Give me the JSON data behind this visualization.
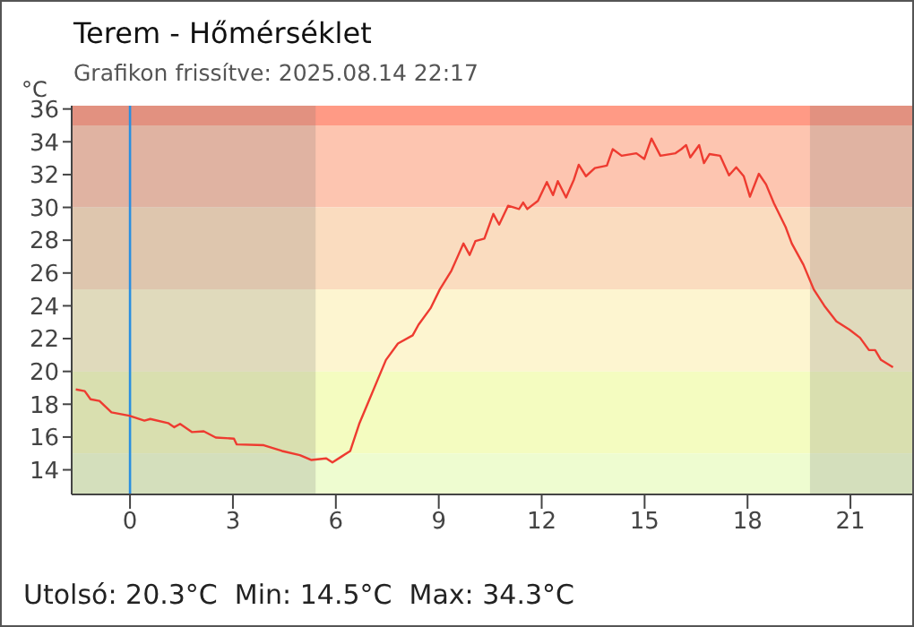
{
  "chart_data": {
    "type": "line",
    "title": "Terem - Hőmérséklet",
    "subtitle": "Grafikon frissítve: 2025.08.14 22:17",
    "ylabel": "°C",
    "annotations": [
      "Utolsó: 20.3°C  Min: 14.5°C  Max: 34.3°C"
    ],
    "xlim": [
      -1.7,
      22.8
    ],
    "xticks": [
      0,
      3,
      6,
      9,
      12,
      15,
      18,
      21
    ],
    "ylim": [
      12.5,
      36.2
    ],
    "yticks": [
      14,
      16,
      18,
      20,
      22,
      24,
      26,
      28,
      30,
      32,
      34,
      36
    ],
    "series": [
      {
        "color": "#ee3b30",
        "x": [
          -1.58,
          -1.32,
          -1.15,
          -0.89,
          -0.54,
          -0.02,
          0.42,
          0.59,
          1.11,
          1.29,
          1.46,
          1.81,
          2.15,
          2.5,
          3.03,
          3.11,
          3.9,
          4.43,
          4.95,
          5.29,
          5.72,
          5.9,
          6.16,
          6.42,
          6.68,
          6.94,
          7.2,
          7.46,
          7.81,
          8.24,
          8.41,
          8.76,
          9.03,
          9.37,
          9.72,
          9.9,
          10.07,
          10.33,
          10.59,
          10.76,
          11.02,
          11.34,
          11.46,
          11.58,
          11.89,
          12.15,
          12.33,
          12.47,
          12.71,
          12.94,
          13.08,
          13.29,
          13.55,
          13.9,
          14.07,
          14.33,
          14.76,
          14.99,
          15.2,
          15.46,
          15.9,
          16.07,
          16.21,
          16.33,
          16.59,
          16.73,
          16.89,
          17.2,
          17.46,
          17.67,
          17.89,
          18.07,
          18.33,
          18.54,
          18.77,
          19.11,
          19.29,
          19.63,
          19.93,
          20.24,
          20.59,
          20.97,
          21.28,
          21.54,
          21.72,
          21.89,
          22.24
        ],
        "values": [
          18.9,
          18.8,
          18.3,
          18.2,
          17.5,
          17.3,
          17.0,
          17.1,
          16.85,
          16.6,
          16.8,
          16.3,
          16.35,
          15.97,
          15.9,
          15.55,
          15.5,
          15.15,
          14.9,
          14.6,
          14.7,
          14.45,
          14.8,
          15.15,
          16.8,
          18.1,
          19.4,
          20.7,
          21.7,
          22.2,
          22.85,
          23.85,
          25.0,
          26.15,
          27.8,
          27.1,
          27.95,
          28.1,
          29.6,
          28.95,
          30.1,
          29.9,
          30.3,
          29.9,
          30.4,
          31.55,
          30.75,
          31.6,
          30.6,
          31.7,
          32.6,
          31.9,
          32.4,
          32.55,
          33.55,
          33.15,
          33.3,
          32.95,
          34.2,
          33.15,
          33.3,
          33.55,
          33.8,
          33.05,
          33.8,
          32.7,
          33.25,
          33.15,
          31.95,
          32.45,
          31.9,
          30.65,
          32.05,
          31.4,
          30.25,
          28.8,
          27.8,
          26.5,
          25.0,
          24.0,
          23.05,
          22.55,
          22.05,
          21.3,
          21.3,
          20.7,
          20.25
        ]
      }
    ],
    "bands": [
      {
        "axis": "y",
        "from": 35,
        "to": 36.2,
        "color": "#ff9a85"
      },
      {
        "axis": "y",
        "from": 30,
        "to": 35,
        "color": "#fdc5b0"
      },
      {
        "axis": "y",
        "from": 25,
        "to": 30,
        "color": "#fadcbf"
      },
      {
        "axis": "y",
        "from": 20,
        "to": 25,
        "color": "#fdf5d0"
      },
      {
        "axis": "y",
        "from": 15,
        "to": 20,
        "color": "#f4fcc0"
      },
      {
        "axis": "y",
        "from": 12.5,
        "to": 15,
        "color": "#eefcd0"
      },
      {
        "axis": "x",
        "from": -1.7,
        "to": 5.41,
        "color": "#6e6e6e"
      },
      {
        "axis": "x",
        "from": 19.82,
        "to": 22.8,
        "color": "#6e6e6e"
      }
    ],
    "ref_lines": [
      {
        "axis": "x",
        "value": 0,
        "color": "#2a8fe0"
      }
    ]
  }
}
